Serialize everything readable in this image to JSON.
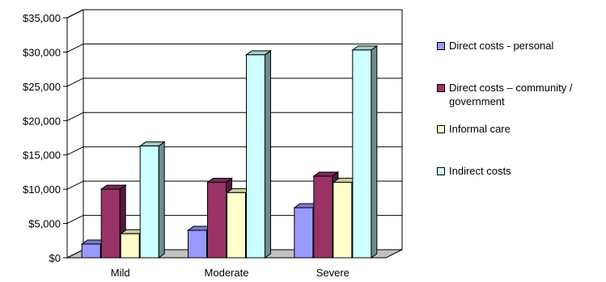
{
  "chart_data": {
    "type": "bar",
    "title": "",
    "xlabel": "",
    "ylabel": "",
    "categories": [
      "Mild",
      "Moderate",
      "Severe"
    ],
    "series": [
      {
        "name": "Direct costs - personal",
        "values": [
          2000,
          4000,
          7300
        ],
        "color": "#9999ff"
      },
      {
        "name": "Direct costs – community / government",
        "values": [
          10000,
          11000,
          11900
        ],
        "color": "#993366"
      },
      {
        "name": "Informal care",
        "values": [
          3500,
          9500,
          11000
        ],
        "color": "#ffffcc"
      },
      {
        "name": "Indirect costs",
        "values": [
          16300,
          29600,
          30300
        ],
        "color": "#ccffff"
      }
    ],
    "ylim": [
      0,
      35000
    ],
    "yticks": [
      "$0",
      "$5,000",
      "$10,000",
      "$15,000",
      "$20,000",
      "$25,000",
      "$30,000",
      "$35,000"
    ],
    "grid": true,
    "legend_position": "right",
    "style": "3d-clustered-column"
  }
}
